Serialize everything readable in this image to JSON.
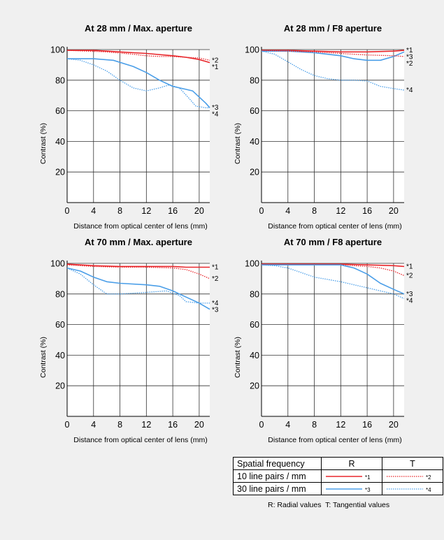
{
  "chart_data": [
    {
      "type": "line",
      "title": "At 28 mm / Max. aperture",
      "xlabel": "Distance from optical center of lens (mm)",
      "ylabel": "Contrast (%)",
      "xlim": [
        0,
        21.6
      ],
      "ylim": [
        0,
        100
      ],
      "xticks": [
        0,
        4,
        8,
        12,
        16,
        20
      ],
      "yticks": [
        20,
        40,
        60,
        80,
        100
      ],
      "grid": true,
      "series": [
        {
          "name": "*1",
          "values": [
            [
              0,
              99.5
            ],
            [
              4,
              99.5
            ],
            [
              8,
              98.5
            ],
            [
              12,
              97.5
            ],
            [
              16,
              96
            ],
            [
              18,
              95
            ],
            [
              20,
              93.5
            ],
            [
              21.6,
              91.5
            ]
          ]
        },
        {
          "name": "*2",
          "values": [
            [
              0,
              99.5
            ],
            [
              6,
              98.5
            ],
            [
              10,
              97
            ],
            [
              12,
              96
            ],
            [
              14,
              95.5
            ],
            [
              16,
              95.5
            ],
            [
              18,
              95
            ],
            [
              20,
              94.5
            ],
            [
              21.6,
              93
            ]
          ]
        },
        {
          "name": "*3",
          "values": [
            [
              0,
              94
            ],
            [
              4,
              94
            ],
            [
              7,
              93
            ],
            [
              10,
              89
            ],
            [
              12,
              85
            ],
            [
              14,
              80
            ],
            [
              16,
              76
            ],
            [
              18,
              74
            ],
            [
              19,
              73
            ],
            [
              20,
              69
            ],
            [
              21,
              65
            ],
            [
              21.6,
              62
            ]
          ]
        },
        {
          "name": "*4",
          "values": [
            [
              0,
              94
            ],
            [
              2,
              93
            ],
            [
              4,
              90
            ],
            [
              6,
              86
            ],
            [
              8,
              80
            ],
            [
              10,
              75
            ],
            [
              12,
              73
            ],
            [
              14,
              75
            ],
            [
              15.5,
              77
            ],
            [
              17,
              75
            ],
            [
              18.5,
              68
            ],
            [
              19.5,
              63
            ],
            [
              21,
              62
            ],
            [
              21.6,
              62
            ]
          ]
        }
      ]
    },
    {
      "type": "line",
      "title": "At 28 mm / F8 aperture",
      "xlabel": "Distance from optical center of lens (mm)",
      "ylabel": "Contrast (%)",
      "xlim": [
        0,
        21.6
      ],
      "ylim": [
        0,
        100
      ],
      "xticks": [
        0,
        4,
        8,
        12,
        16,
        20
      ],
      "yticks": [
        20,
        40,
        60,
        80,
        100
      ],
      "grid": true,
      "series": [
        {
          "name": "*1",
          "values": [
            [
              0,
              99.5
            ],
            [
              4,
              99.5
            ],
            [
              8,
              99
            ],
            [
              12,
              98.5
            ],
            [
              16,
              98.5
            ],
            [
              20,
              99
            ],
            [
              21.6,
              99.5
            ]
          ]
        },
        {
          "name": "*3",
          "values": [
            [
              0,
              99
            ],
            [
              4,
              99
            ],
            [
              8,
              98
            ],
            [
              12,
              96
            ],
            [
              14,
              94
            ],
            [
              16,
              93
            ],
            [
              18,
              93
            ],
            [
              20,
              95.5
            ],
            [
              21.6,
              98.5
            ]
          ]
        },
        {
          "name": "*2",
          "values": [
            [
              0,
              99.5
            ],
            [
              4,
              99
            ],
            [
              8,
              98.5
            ],
            [
              12,
              97.5
            ],
            [
              16,
              96.5
            ],
            [
              20,
              96
            ],
            [
              21.6,
              95.5
            ]
          ]
        },
        {
          "name": "*4",
          "values": [
            [
              0,
              99
            ],
            [
              2,
              97
            ],
            [
              4,
              92
            ],
            [
              6,
              87
            ],
            [
              8,
              83
            ],
            [
              10,
              81
            ],
            [
              12,
              80
            ],
            [
              14,
              80
            ],
            [
              16,
              79.5
            ],
            [
              18,
              76
            ],
            [
              20,
              74.5
            ],
            [
              21.6,
              73.5
            ]
          ]
        }
      ]
    },
    {
      "type": "line",
      "title": "At 70 mm / Max. aperture",
      "xlabel": "Distance from optical center of lens (mm)",
      "ylabel": "Contrast (%)",
      "xlim": [
        0,
        21.6
      ],
      "ylim": [
        0,
        100
      ],
      "xticks": [
        0,
        4,
        8,
        12,
        16,
        20
      ],
      "yticks": [
        20,
        40,
        60,
        80,
        100
      ],
      "grid": true,
      "series": [
        {
          "name": "*1",
          "values": [
            [
              0,
              99.5
            ],
            [
              4,
              98.5
            ],
            [
              8,
              98
            ],
            [
              12,
              98
            ],
            [
              16,
              98
            ],
            [
              18,
              97.5
            ],
            [
              20,
              97.5
            ],
            [
              21.6,
              97.5
            ]
          ]
        },
        {
          "name": "*2",
          "values": [
            [
              0,
              99
            ],
            [
              4,
              98
            ],
            [
              8,
              97.5
            ],
            [
              12,
              97.5
            ],
            [
              16,
              97
            ],
            [
              18,
              96
            ],
            [
              20,
              93
            ],
            [
              21.6,
              90
            ]
          ]
        },
        {
          "name": "*4",
          "values": [
            [
              0,
              97
            ],
            [
              2,
              93
            ],
            [
              4,
              86
            ],
            [
              6,
              80
            ],
            [
              8,
              80
            ],
            [
              12,
              81
            ],
            [
              15,
              82
            ],
            [
              17,
              79
            ],
            [
              18,
              75
            ],
            [
              20,
              74
            ],
            [
              21.6,
              74
            ]
          ]
        },
        {
          "name": "*3",
          "values": [
            [
              0,
              97
            ],
            [
              2,
              95
            ],
            [
              4,
              91
            ],
            [
              6,
              88
            ],
            [
              8,
              87
            ],
            [
              12,
              86
            ],
            [
              14,
              85
            ],
            [
              16,
              82
            ],
            [
              18,
              78
            ],
            [
              20,
              74
            ],
            [
              21.6,
              70
            ]
          ]
        }
      ]
    },
    {
      "type": "line",
      "title": "At 70 mm / F8 aperture",
      "xlabel": "Distance from optical center of lens (mm)",
      "ylabel": "Contrast (%)",
      "xlim": [
        0,
        21.6
      ],
      "ylim": [
        0,
        100
      ],
      "xticks": [
        0,
        4,
        8,
        12,
        16,
        20
      ],
      "yticks": [
        20,
        40,
        60,
        80,
        100
      ],
      "grid": true,
      "series": [
        {
          "name": "*1",
          "values": [
            [
              0,
              99.5
            ],
            [
              4,
              99.5
            ],
            [
              8,
              99.5
            ],
            [
              12,
              99.5
            ],
            [
              16,
              99
            ],
            [
              20,
              98.5
            ],
            [
              21.6,
              98
            ]
          ]
        },
        {
          "name": "*2",
          "values": [
            [
              0,
              99.5
            ],
            [
              4,
              99.5
            ],
            [
              8,
              99.5
            ],
            [
              12,
              99
            ],
            [
              16,
              98
            ],
            [
              18,
              97
            ],
            [
              20,
              95
            ],
            [
              21.6,
              92
            ]
          ]
        },
        {
          "name": "*3",
          "values": [
            [
              0,
              99
            ],
            [
              4,
              99
            ],
            [
              8,
              99
            ],
            [
              12,
              99
            ],
            [
              14,
              97
            ],
            [
              16,
              93
            ],
            [
              18,
              87
            ],
            [
              20,
              83
            ],
            [
              21.6,
              80
            ]
          ]
        },
        {
          "name": "*4",
          "values": [
            [
              0,
              99
            ],
            [
              2,
              98.5
            ],
            [
              4,
              97
            ],
            [
              8,
              91
            ],
            [
              12,
              88
            ],
            [
              16,
              84
            ],
            [
              20,
              80
            ],
            [
              21.6,
              77
            ]
          ]
        }
      ]
    }
  ],
  "legend": {
    "header": [
      "Spatial frequency",
      "R",
      "T"
    ],
    "rows": [
      {
        "label": "10 line pairs / mm",
        "r_mark": "*1",
        "t_mark": "*2"
      },
      {
        "label": "30 line pairs / mm",
        "r_mark": "*3",
        "t_mark": "*4"
      }
    ],
    "note": "R: Radial values  T: Tangential values"
  },
  "colors": {
    "red": "#e8262b",
    "blue": "#4a9ee8",
    "grid": "#333333"
  }
}
